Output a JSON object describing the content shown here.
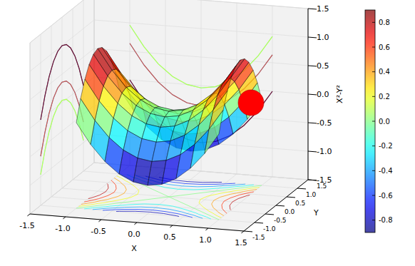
{
  "chart_data": {
    "type": "surface",
    "xlabel": "X",
    "ylabel": "Y",
    "zlabel": "X²-Y²",
    "grid": true,
    "xlim": [
      -1.5,
      1.5
    ],
    "xticks": [
      -1.5,
      {
        "value": -1,
        "label": "-1.0"
      },
      -0.5,
      {
        "value": 0,
        "label": "0.0"
      },
      0.5,
      {
        "value": 1,
        "label": "1.0"
      },
      1.5
    ],
    "ylim": [
      -1.5,
      1.5
    ],
    "yticks": [
      -1.5,
      {
        "value": -1,
        "label": "-1.0"
      },
      -0.5,
      {
        "value": 0,
        "label": "0.0"
      },
      0.5,
      {
        "value": 1,
        "label": "1.0"
      },
      1.5
    ],
    "zlim": [
      -1.5,
      1.5
    ],
    "zticks": [
      -1.5,
      {
        "value": -1,
        "label": "-1.0"
      },
      -0.5,
      {
        "value": 0,
        "label": "0.0"
      },
      0.5,
      {
        "value": 1,
        "label": "1.0"
      },
      1.5
    ],
    "surface": {
      "x": [
        -1,
        -0.8,
        -0.6,
        -0.4,
        -0.2,
        0,
        0.2,
        0.4,
        0.6,
        0.8,
        1
      ],
      "y": [
        -1,
        -0.8,
        -0.6,
        -0.4,
        -0.2,
        0,
        0.2,
        0.4,
        0.6,
        0.8,
        1
      ],
      "z": [
        [
          0,
          -0.36,
          -0.64,
          -0.84,
          -0.96,
          -1,
          -0.96,
          -0.84,
          -0.64,
          -0.36,
          0
        ],
        [
          0.36,
          0,
          -0.28,
          -0.48,
          -0.6,
          -0.64,
          -0.6,
          -0.48,
          -0.28,
          0,
          0.36
        ],
        [
          0.64,
          0.28,
          0,
          -0.2,
          -0.32,
          -0.36,
          -0.32,
          -0.2,
          0,
          0.28,
          0.64
        ],
        [
          0.84,
          0.48,
          0.2,
          0,
          -0.12,
          -0.16,
          -0.12,
          0,
          0.2,
          0.48,
          0.84
        ],
        [
          0.96,
          0.6,
          0.32,
          0.12,
          0,
          -0.04,
          0,
          0.12,
          0.32,
          0.6,
          0.96
        ],
        [
          1,
          0.64,
          0.36,
          0.16,
          0.04,
          0,
          0.04,
          0.16,
          0.36,
          0.64,
          1
        ],
        [
          0.96,
          0.6,
          0.32,
          0.12,
          0,
          -0.04,
          0,
          0.12,
          0.32,
          0.6,
          0.96
        ],
        [
          0.84,
          0.48,
          0.2,
          0,
          -0.12,
          -0.16,
          -0.12,
          0,
          0.2,
          0.48,
          0.84
        ],
        [
          0.64,
          0.28,
          0,
          -0.2,
          -0.32,
          -0.36,
          -0.32,
          -0.2,
          0,
          0.28,
          0.64
        ],
        [
          0.36,
          0,
          -0.28,
          -0.48,
          -0.6,
          -0.64,
          -0.6,
          -0.48,
          -0.28,
          0,
          0.36
        ],
        [
          0,
          -0.36,
          -0.64,
          -0.84,
          -0.96,
          -1,
          -0.96,
          -0.84,
          -0.64,
          -0.36,
          0
        ]
      ]
    },
    "colorbar": {
      "range": [
        -0.9,
        0.9
      ],
      "ticks": [
        -0.8,
        -0.6,
        -0.4,
        -0.2,
        {
          "value": 0,
          "label": "0.0"
        },
        0.2,
        0.4,
        0.6,
        0.8
      ]
    },
    "series": [
      {
        "type": "scatter",
        "color": "#ff0000",
        "marker": "o",
        "x": [
          1.0
        ],
        "y": [
          0.5
        ],
        "z": [
          0.1
        ]
      }
    ]
  }
}
